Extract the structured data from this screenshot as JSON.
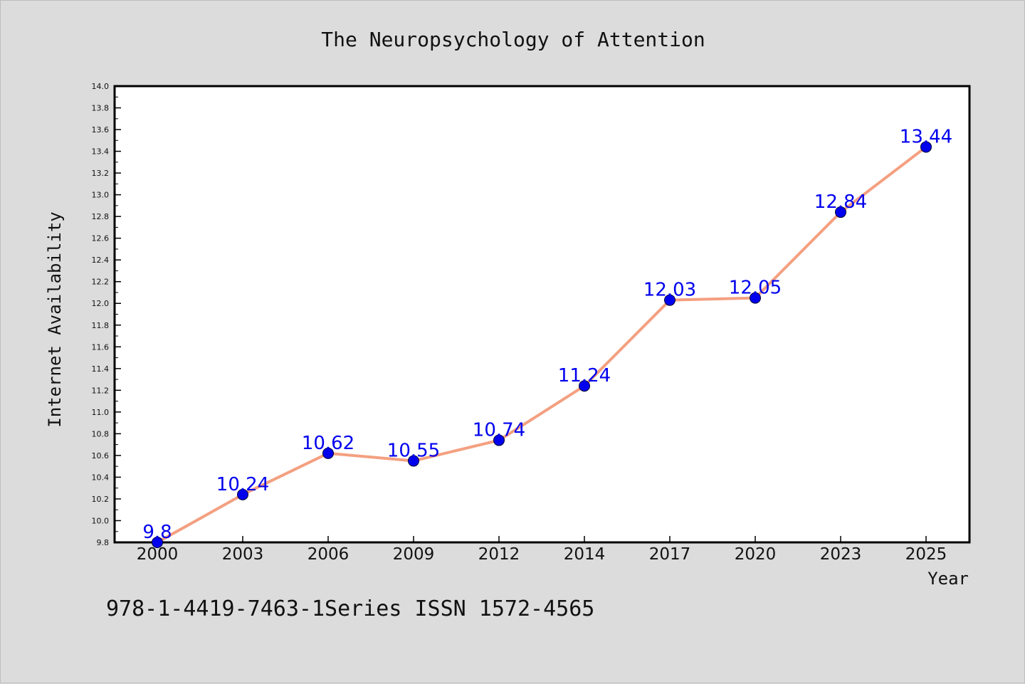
{
  "chart_data": {
    "type": "line",
    "title": "The Neuropsychology of Attention",
    "xlabel": "Year",
    "ylabel": "Internet Availability",
    "categories": [
      "2000",
      "2003",
      "2006",
      "2009",
      "2012",
      "2014",
      "2017",
      "2020",
      "2023",
      "2025"
    ],
    "series": [
      {
        "values": [
          9.8,
          10.24,
          10.62,
          10.55,
          10.74,
          11.24,
          12.03,
          12.05,
          12.84,
          13.44
        ],
        "labels": [
          "9.8",
          "10.24",
          "10.62",
          "10.55",
          "10.74",
          "11.24",
          "12.03",
          "12.05",
          "12.84",
          "13.44"
        ],
        "line_color": "#f4a081",
        "marker_color": "#0000ee"
      }
    ],
    "ylim": [
      9.8,
      14.0
    ],
    "yticks": [
      "9.8",
      "10.0",
      "10.2",
      "10.4",
      "10.6",
      "10.8",
      "11.0",
      "11.2",
      "11.4",
      "11.6",
      "11.8",
      "12.0",
      "12.2",
      "12.4",
      "12.6",
      "12.8",
      "13.0",
      "13.2",
      "13.4",
      "13.6",
      "13.8",
      "14.0"
    ],
    "grid": false,
    "legend": "none",
    "footer": "978-1-4419-7463-1Series ISSN 1572-4565"
  }
}
